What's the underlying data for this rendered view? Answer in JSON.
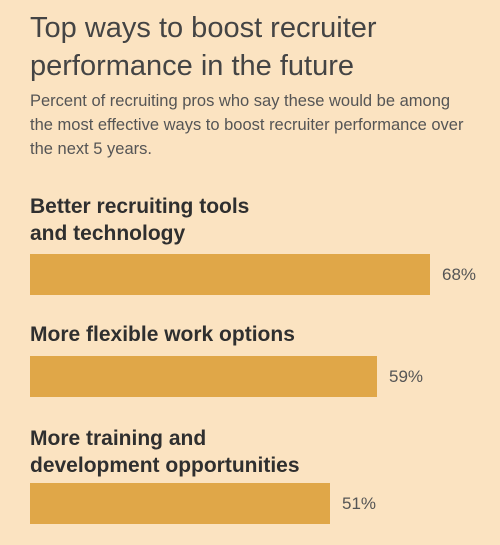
{
  "chart_data": {
    "type": "bar",
    "orientation": "horizontal",
    "title": "Top ways to boost recruiter performance in the future",
    "subtitle": "Percent of recruiting pros who say these would be among the most effective ways to boost recruiter performance over the next 5 years.",
    "categories": [
      "Better recruiting tools and technology",
      "More flexible work options",
      "More training and development opportunities"
    ],
    "values": [
      68,
      59,
      51
    ],
    "value_labels": [
      "68%",
      "59%",
      "51%"
    ],
    "unit": "%",
    "xlim": [
      0,
      100
    ],
    "grid": false,
    "legend": "none",
    "bar_color": "#e0a748",
    "background_color": "#fbe3c1"
  }
}
